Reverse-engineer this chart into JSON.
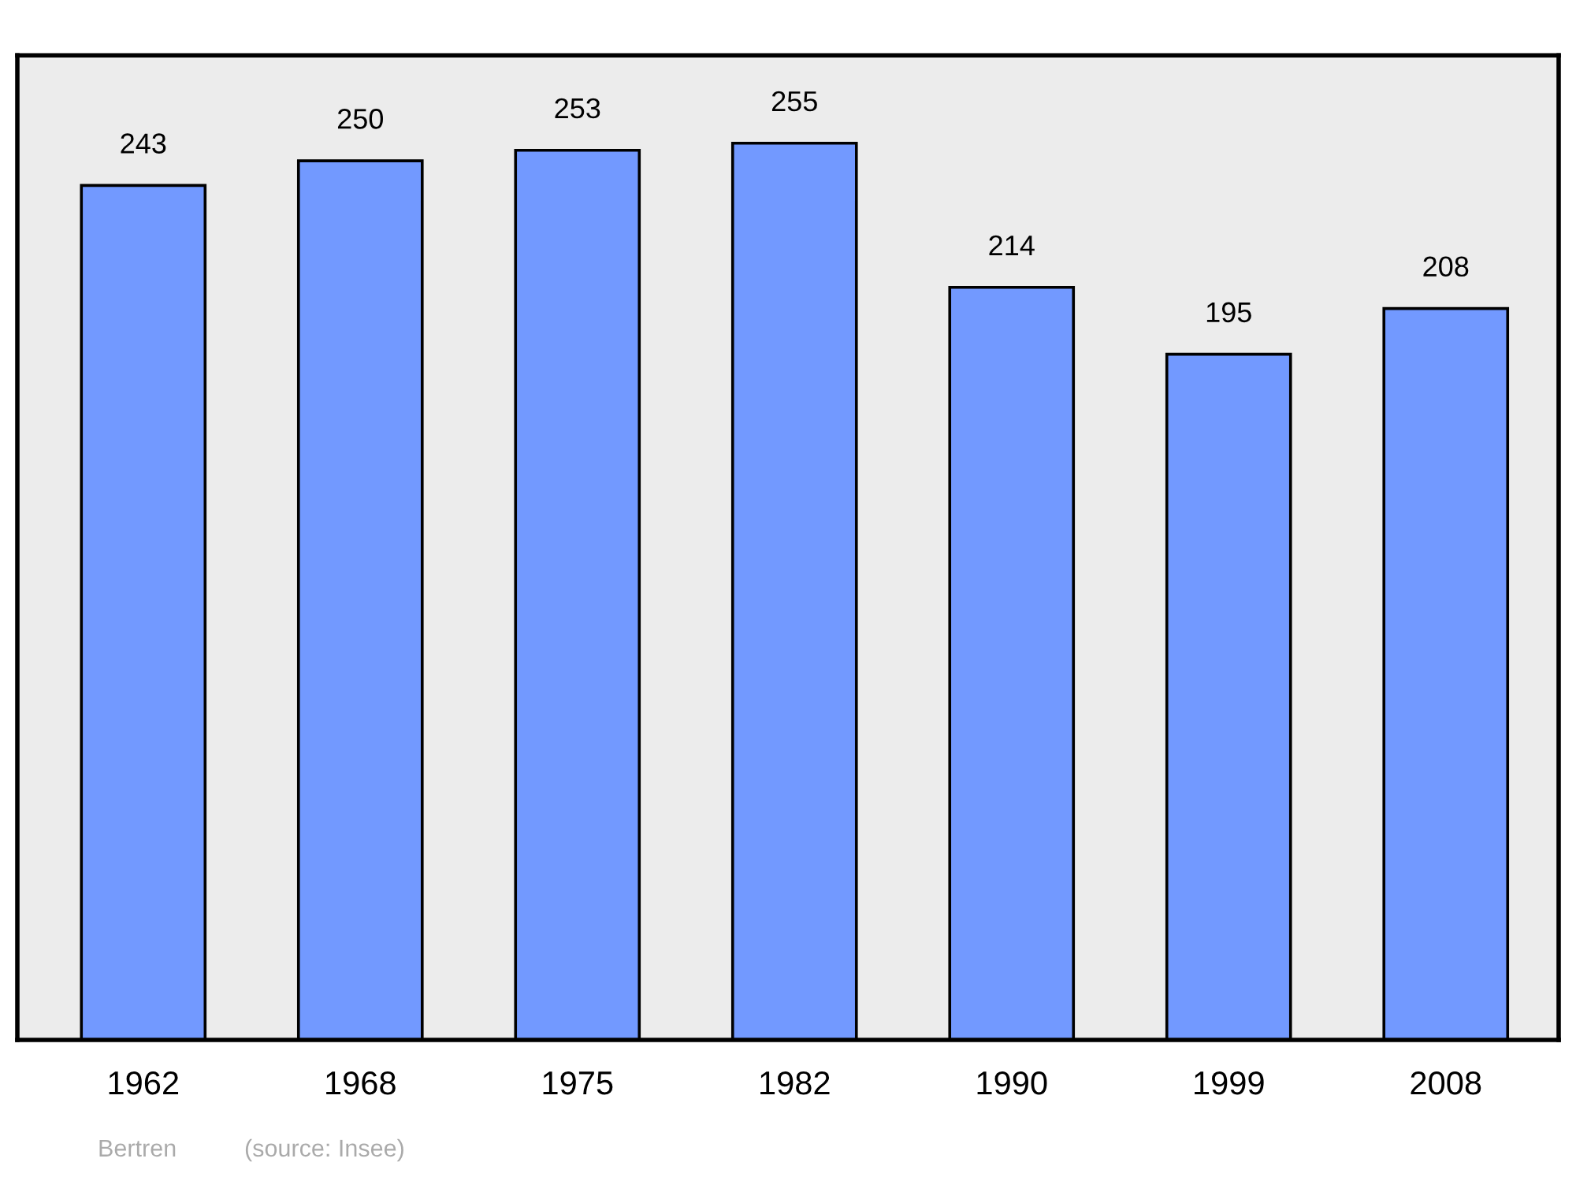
{
  "chart_data": {
    "type": "bar",
    "categories": [
      "1962",
      "1968",
      "1975",
      "1982",
      "1990",
      "1999",
      "2008"
    ],
    "values": [
      243,
      250,
      253,
      255,
      214,
      195,
      208
    ],
    "color": "#7299ff",
    "data_labels": true,
    "ylim": [
      0,
      280
    ],
    "grid": false,
    "legend": false,
    "tick_labels": "x",
    "annotations": [
      "Bertren",
      "(source: Insee)"
    ]
  }
}
